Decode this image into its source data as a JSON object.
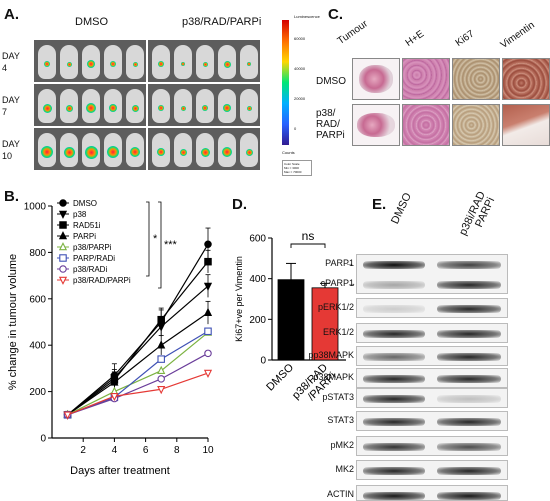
{
  "panelA": {
    "label": "A.",
    "col_dmso": "DMSO",
    "col_combo": "p38/RAD/PARPi",
    "days": [
      "DAY\n4",
      "DAY\n7",
      "DAY\n10"
    ],
    "day_labels": [
      {
        "top": "DAY",
        "bottom": "4"
      },
      {
        "top": "DAY",
        "bottom": "7"
      },
      {
        "top": "DAY",
        "bottom": "10"
      }
    ],
    "scale_title": "Luminescence",
    "scale_ticks": [
      "60000",
      "40000",
      "20000",
      "0"
    ],
    "scale_units": "Counts",
    "scale_box": [
      "Color Scale",
      "Min = 3000",
      "Max = 70000"
    ]
  },
  "panelB": {
    "label": "B.",
    "chart_data": {
      "type": "line",
      "xlabel": "Days after treatment",
      "ylabel": "% change in tumour volume",
      "xlim": [
        0,
        10
      ],
      "ylim": [
        0,
        1000
      ],
      "xticks": [
        "2",
        "4",
        "6",
        "8",
        "10"
      ],
      "yticks": [
        "0",
        "200",
        "400",
        "600",
        "800",
        "1000"
      ],
      "x": [
        1,
        4,
        7,
        10
      ],
      "series": [
        {
          "name": "DMSO",
          "values": [
            100,
            270,
            500,
            835
          ],
          "color": "#000000",
          "marker": "circle"
        },
        {
          "name": "p38",
          "values": [
            100,
            260,
            480,
            655
          ],
          "color": "#000000",
          "marker": "tri-down"
        },
        {
          "name": "RAD51i",
          "values": [
            100,
            250,
            510,
            760
          ],
          "color": "#000000",
          "marker": "square"
        },
        {
          "name": "PARPi",
          "values": [
            100,
            240,
            400,
            540
          ],
          "color": "#000000",
          "marker": "tri-up"
        },
        {
          "name": "p38/PARPi",
          "values": [
            100,
            200,
            290,
            455
          ],
          "color": "#7cb342",
          "marker": "tri-up-open"
        },
        {
          "name": "PARP/RADi",
          "values": [
            100,
            175,
            340,
            460
          ],
          "color": "#3f51b5",
          "marker": "square-open"
        },
        {
          "name": "p38/RADi",
          "values": [
            100,
            170,
            255,
            365
          ],
          "color": "#6a3d9a",
          "marker": "circle-open"
        },
        {
          "name": "p38/RAD/PARPi",
          "values": [
            100,
            180,
            210,
            280
          ],
          "color": "#e53935",
          "marker": "tri-down-open"
        }
      ],
      "annotations": [
        "*",
        "***"
      ],
      "legend": "top-left"
    }
  },
  "panelC": {
    "label": "C.",
    "columns": [
      "Tumour",
      "H+E",
      "Ki67",
      "Vimentin"
    ],
    "row1": "DMSO",
    "row2": "p38/\nRAD/\nPARPi",
    "row2_lines": [
      "p38/",
      "RAD/",
      "PARPi"
    ]
  },
  "panelD": {
    "label": "D.",
    "chart_data": {
      "type": "bar",
      "categories": [
        "DMSO",
        "p38/RAD\n/PARPi"
      ],
      "category_lines": [
        [
          "DMSO"
        ],
        [
          "p38/RAD",
          "/PARPi"
        ]
      ],
      "values": [
        395,
        355
      ],
      "errors": [
        80,
        22
      ],
      "colors": [
        "#000000",
        "#e53935"
      ],
      "ylabel": "Ki67+ve per Vimentin",
      "ylim": [
        0,
        600
      ],
      "yticks": [
        "0",
        "200",
        "400",
        "600"
      ],
      "annotation": "ns"
    }
  },
  "panelE": {
    "label": "E.",
    "lanes": [
      "DMSO",
      "p38i/RAD\nPARPi"
    ],
    "lane_lines": [
      [
        "DMSO"
      ],
      [
        "p38i/RAD",
        "PARPi"
      ]
    ],
    "rows": [
      "PARP1",
      "cPARP1",
      "pERK1/2",
      "ERK1/2",
      "pp38MAPK",
      "p38MAPK",
      "pSTAT3",
      "STAT3",
      "pMK2",
      "MK2",
      "ACTIN"
    ]
  }
}
